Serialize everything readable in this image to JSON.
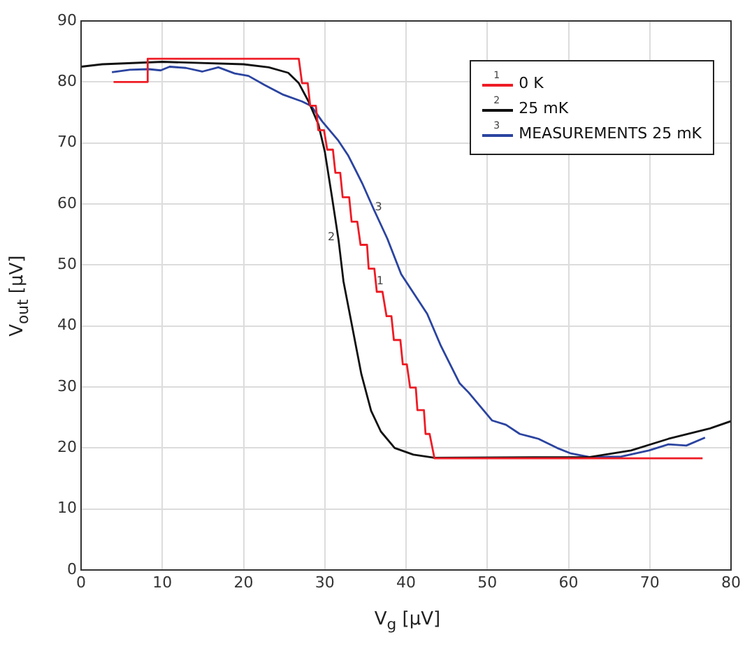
{
  "chart_data": {
    "type": "line",
    "xlabel": "V$_{g}$ [µV]",
    "ylabel": "V$_{out}$ [µV]",
    "xlim": [
      0,
      80
    ],
    "xticks": [
      0,
      10,
      20,
      30,
      40,
      50,
      60,
      70,
      80
    ],
    "ylim": [
      0,
      90
    ],
    "yticks": [
      0,
      10,
      20,
      30,
      40,
      50,
      60,
      70,
      80,
      90
    ],
    "grid": true,
    "legend": "top right",
    "marker": "none",
    "line_style": "solid",
    "series": [
      {
        "name": "0 K",
        "color": "#ee1c25",
        "x": [
          4,
          8.2,
          8.2,
          26.8,
          27.2,
          27.9,
          28.2,
          28.9,
          29.2,
          29.9,
          30.3,
          31.0,
          31.3,
          31.9,
          32.2,
          33.0,
          33.3,
          34.0,
          34.4,
          35.2,
          35.4,
          36.1,
          36.4,
          37.1,
          37.6,
          38.2,
          38.5,
          39.3,
          39.6,
          40.1,
          40.5,
          41.2,
          41.4,
          42.2,
          42.4,
          42.9,
          43.5,
          76.5
        ],
        "values": [
          80,
          80,
          83.8,
          83.8,
          79.8,
          79.8,
          76.1,
          76.1,
          72.1,
          72.1,
          68.9,
          68.9,
          65.1,
          65.1,
          61.1,
          61.1,
          57.1,
          57.1,
          53.3,
          53.3,
          49.4,
          49.4,
          45.6,
          45.6,
          41.6,
          41.6,
          37.7,
          37.7,
          33.7,
          33.7,
          29.9,
          29.9,
          26.2,
          26.2,
          22.3,
          22.3,
          18.3,
          18.3
        ]
      },
      {
        "name": "25 mK",
        "color": "#111111",
        "x": [
          0,
          2.6,
          10,
          20,
          23.1,
          25.5,
          26.8,
          28,
          29.2,
          30,
          30.9,
          31.7,
          32.3,
          33.4,
          34.5,
          35.7,
          36.9,
          38.6,
          40.9,
          43.5,
          62.6,
          67.7,
          72.3,
          77.4,
          80
        ],
        "values": [
          82.5,
          82.9,
          83.3,
          82.9,
          82.4,
          81.5,
          79.8,
          76.8,
          73.1,
          68.6,
          61,
          54,
          47.3,
          39.7,
          32.1,
          26.1,
          22.7,
          20,
          18.9,
          18.4,
          18.5,
          19.6,
          21.5,
          23.2,
          24.4
        ]
      },
      {
        "name": "MEASUREMENTS 25 mK",
        "color": "#2b44a0",
        "x": [
          3.8,
          6,
          8.3,
          9.8,
          10.9,
          12.9,
          14.9,
          16.9,
          18.9,
          20.6,
          22.6,
          24.9,
          27.2,
          28.3,
          29.7,
          31.6,
          32.9,
          34.6,
          36,
          37.7,
          39.4,
          42.6,
          44.3,
          46.6,
          47.7,
          50.6,
          52.3,
          54,
          56.3,
          58.6,
          60.3,
          62.6,
          66.5,
          69.9,
          72.3,
          74.5,
          76.8
        ],
        "values": [
          81.6,
          82,
          82.1,
          81.9,
          82.5,
          82.3,
          81.7,
          82.4,
          81.4,
          81,
          79.5,
          77.9,
          76.8,
          76.1,
          73.5,
          70.5,
          67.9,
          63.4,
          59.2,
          54.3,
          48.5,
          42,
          36.7,
          30.6,
          29.1,
          24.5,
          23.8,
          22.3,
          21.5,
          20,
          19.1,
          18.5,
          18.6,
          19.6,
          20.6,
          20.4,
          21.7
        ]
      }
    ],
    "annotations": [
      {
        "text": "1",
        "x": 36.8,
        "y": 47.3
      },
      {
        "text": "2",
        "x": 30.8,
        "y": 54.5
      },
      {
        "text": "3",
        "x": 36.6,
        "y": 59.4
      }
    ]
  }
}
